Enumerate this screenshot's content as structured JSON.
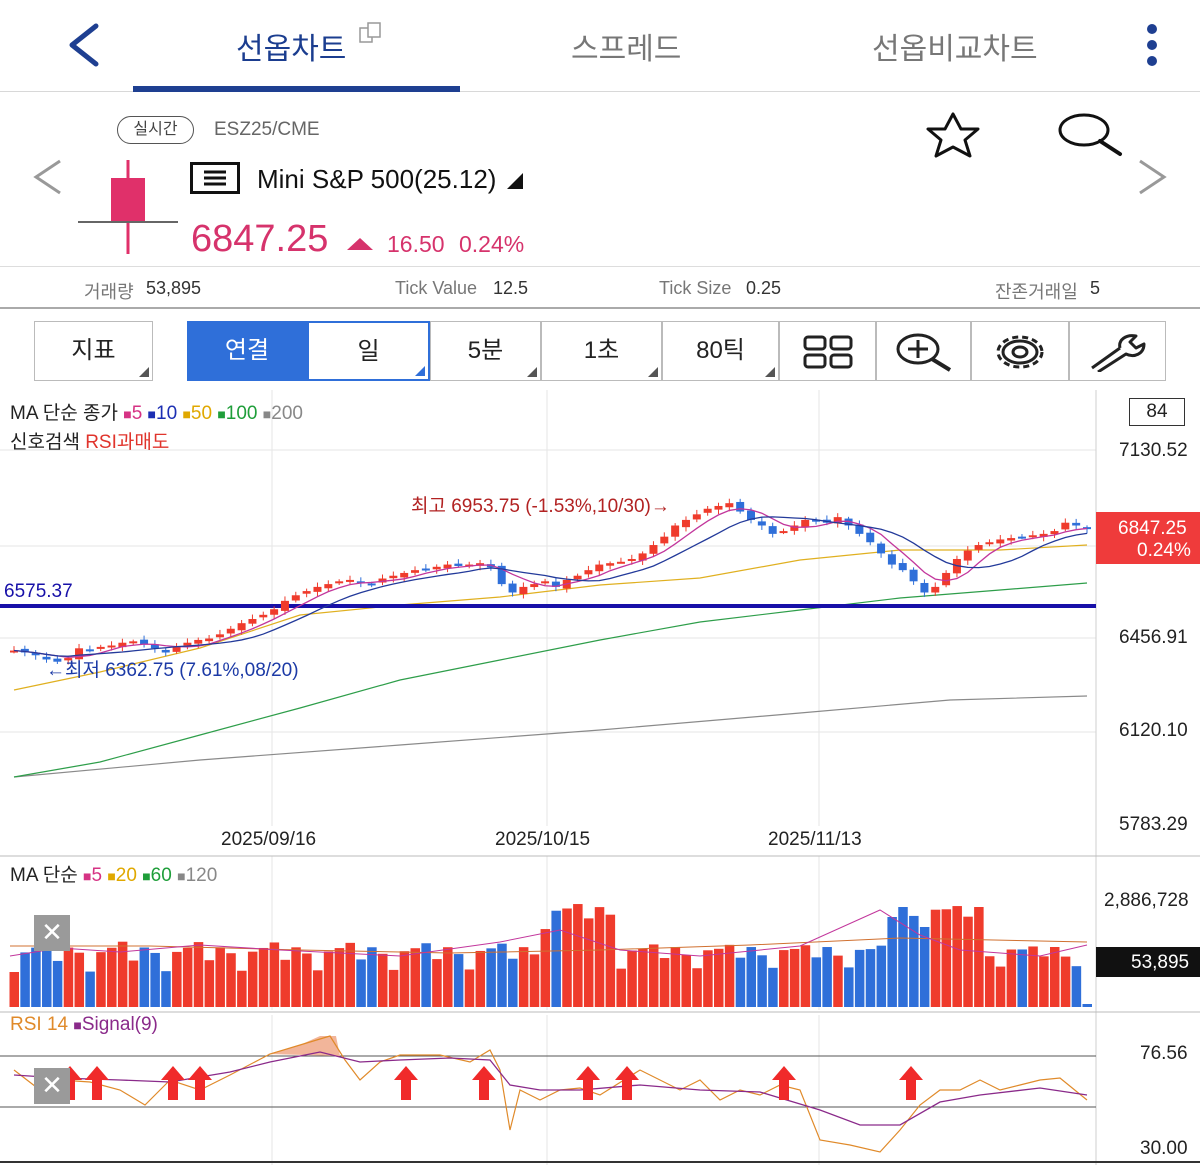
{
  "tabs": [
    {
      "label": "선옵차트",
      "active": true
    },
    {
      "label": "스프레드",
      "active": false
    },
    {
      "label": "선옵비교차트",
      "active": false
    }
  ],
  "icons": {
    "back": "chevron-left-icon",
    "menu": "kebab-menu-icon",
    "star": "star-icon",
    "search": "search-icon",
    "prev": "chevron-left-icon",
    "next": "chevron-right-icon",
    "list": "list-icon",
    "layout": "grid-layout-icon",
    "zoom": "zoom-in-icon",
    "settings": "gear-icon",
    "tools": "wrench-icon"
  },
  "instrument": {
    "badge": "실시간",
    "code": "ESZ25/CME",
    "name": "Mini S&P 500(25.12)",
    "price": "6847.25",
    "change": "16.50",
    "change_pct": "0.24%",
    "color_up": "#d6336c"
  },
  "info": {
    "volume_label": "거래량",
    "volume": "53,895",
    "tick_value_label": "Tick Value",
    "tick_value": "12.5",
    "tick_size_label": "Tick Size",
    "tick_size": "0.25",
    "days_label": "잔존거래일",
    "days": "5"
  },
  "toolbar": {
    "indicator": "지표",
    "link": "연결",
    "day": "일",
    "min5": "5분",
    "sec1": "1초",
    "tick80": "80틱"
  },
  "price_chart": {
    "legend_prefix": "MA 단순 종가",
    "legend": [
      "5",
      "10",
      "50",
      "100",
      "200"
    ],
    "signal_label": "신호검색",
    "signal_value": "RSI과매도",
    "count_box": "84",
    "y_ticks": [
      "7130.52",
      "6456.91",
      "6120.10",
      "5783.29"
    ],
    "hline_value": "6575.37",
    "high_note": "최고 6953.75 (-1.53%,10/30)→",
    "low_note": "←최저 6362.75 (7.61%,08/20)",
    "last_price": "6847.25",
    "last_pct": "0.24%",
    "x_labels": [
      "2025/09/16",
      "2025/10/15",
      "2025/11/13"
    ]
  },
  "volume_chart": {
    "legend_prefix": "MA 단순",
    "legend": [
      "5",
      "20",
      "60",
      "120"
    ],
    "y_top": "2,886,728",
    "last_volume": "53,895"
  },
  "rsi_chart": {
    "label": "RSI 14",
    "signal": "Signal(9)",
    "y_top": "76.56",
    "y_bottom": "30.00"
  },
  "chart_data": {
    "type": "candlestick",
    "x_labels": [
      "2025/09/16",
      "2025/10/15",
      "2025/11/13"
    ],
    "ylim": [
      5783.29,
      7130.52
    ],
    "y_ticks": [
      7130.52,
      6456.91,
      6120.1,
      5783.29
    ],
    "reference_line": 6575.37,
    "high": {
      "value": 6953.75,
      "date": "10/30",
      "pct": -1.53
    },
    "low": {
      "value": 6362.75,
      "date": "08/20",
      "pct": 7.61
    },
    "last": 6847.25,
    "closes": [
      6412,
      6405,
      6395,
      6380,
      6372,
      6385,
      6420,
      6415,
      6425,
      6430,
      6440,
      6445,
      6435,
      6420,
      6405,
      6425,
      6440,
      6450,
      6455,
      6470,
      6490,
      6510,
      6525,
      6540,
      6560,
      6590,
      6610,
      6625,
      6640,
      6650,
      6660,
      6665,
      6655,
      6650,
      6670,
      6680,
      6690,
      6700,
      6705,
      6712,
      6720,
      6715,
      6720,
      6725,
      6710,
      6650,
      6620,
      6640,
      6650,
      6660,
      6640,
      6665,
      6680,
      6700,
      6720,
      6725,
      6730,
      6740,
      6760,
      6790,
      6820,
      6860,
      6880,
      6900,
      6920,
      6930,
      6940,
      6910,
      6880,
      6860,
      6830,
      6840,
      6860,
      6880,
      6875,
      6870,
      6890,
      6860,
      6830,
      6800,
      6760,
      6720,
      6700,
      6660,
      6620,
      6640,
      6690,
      6740,
      6770,
      6790,
      6800,
      6810,
      6815,
      6820,
      6825,
      6830,
      6840,
      6870,
      6860,
      6847.25
    ],
    "volume_ylim": [
      0,
      2886728
    ],
    "rsi_ylim": [
      30.0,
      76.56
    ]
  }
}
